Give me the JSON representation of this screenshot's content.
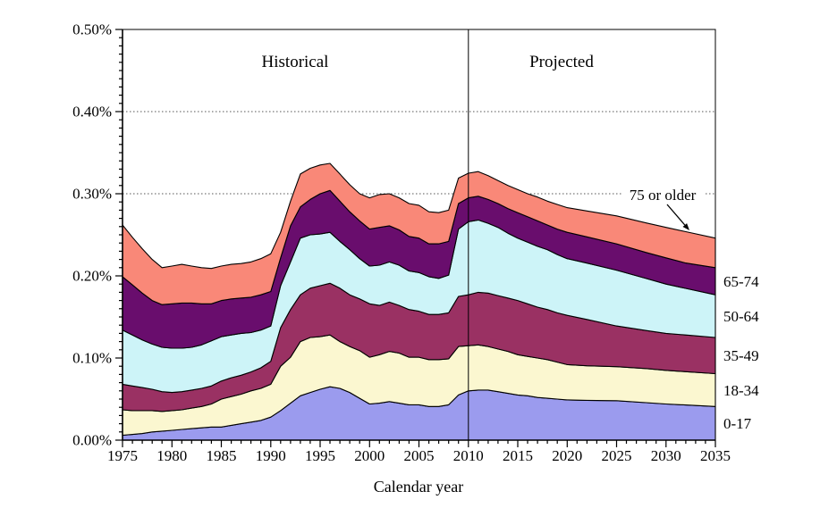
{
  "chart_data": {
    "type": "area",
    "stacked": true,
    "xlabel": "Calendar year",
    "xlim": [
      1975,
      2035
    ],
    "ylim_percent": [
      0,
      0.5
    ],
    "grid": "dashed horizontal at each 0.10%",
    "legend_position": "right-edge band labels",
    "divider_year": 2010,
    "y_tick_labels": [
      "0.00%",
      "0.10%",
      "0.20%",
      "0.30%",
      "0.40%",
      "0.50%"
    ],
    "x_tick_labels": [
      "1975",
      "1980",
      "1985",
      "1990",
      "1995",
      "2000",
      "2005",
      "2010",
      "2015",
      "2020",
      "2025",
      "2030",
      "2035"
    ],
    "annotations": {
      "historical": "Historical",
      "projected": "Projected",
      "callout": "75 or older"
    },
    "x": [
      1975,
      1976,
      1977,
      1978,
      1979,
      1980,
      1981,
      1982,
      1983,
      1984,
      1985,
      1986,
      1987,
      1988,
      1989,
      1990,
      1991,
      1992,
      1993,
      1994,
      1995,
      1996,
      1997,
      1998,
      1999,
      2000,
      2001,
      2002,
      2003,
      2004,
      2005,
      2006,
      2007,
      2008,
      2009,
      2010,
      2011,
      2012,
      2013,
      2014,
      2015,
      2016,
      2017,
      2018,
      2019,
      2020,
      2022,
      2025,
      2028,
      2030,
      2032,
      2035
    ],
    "series": [
      {
        "name": "0-17",
        "color": "#9B9BEE",
        "values": [
          0.006,
          0.007,
          0.008,
          0.01,
          0.011,
          0.012,
          0.013,
          0.014,
          0.015,
          0.016,
          0.016,
          0.018,
          0.02,
          0.022,
          0.024,
          0.028,
          0.036,
          0.045,
          0.054,
          0.058,
          0.062,
          0.065,
          0.063,
          0.058,
          0.051,
          0.044,
          0.045,
          0.047,
          0.045,
          0.043,
          0.043,
          0.041,
          0.041,
          0.043,
          0.055,
          0.06,
          0.061,
          0.061,
          0.059,
          0.057,
          0.055,
          0.054,
          0.052,
          0.051,
          0.05,
          0.049,
          0.0485,
          0.048,
          0.0456,
          0.044,
          0.0428,
          0.041
        ]
      },
      {
        "name": "18-34",
        "color": "#FBF7D0",
        "values": [
          0.031,
          0.029,
          0.028,
          0.026,
          0.024,
          0.024,
          0.024,
          0.025,
          0.026,
          0.028,
          0.034,
          0.035,
          0.036,
          0.038,
          0.039,
          0.04,
          0.054,
          0.056,
          0.066,
          0.067,
          0.064,
          0.063,
          0.057,
          0.056,
          0.058,
          0.057,
          0.059,
          0.061,
          0.061,
          0.058,
          0.058,
          0.057,
          0.057,
          0.056,
          0.059,
          0.055,
          0.055,
          0.053,
          0.052,
          0.051,
          0.049,
          0.048,
          0.048,
          0.047,
          0.045,
          0.043,
          0.042,
          0.0415,
          0.0416,
          0.041,
          0.0406,
          0.04
        ]
      },
      {
        "name": "35-49",
        "color": "#9A3163",
        "values": [
          0.031,
          0.03,
          0.028,
          0.026,
          0.024,
          0.022,
          0.022,
          0.022,
          0.022,
          0.022,
          0.022,
          0.023,
          0.023,
          0.023,
          0.025,
          0.028,
          0.047,
          0.058,
          0.057,
          0.06,
          0.062,
          0.063,
          0.065,
          0.063,
          0.063,
          0.065,
          0.06,
          0.06,
          0.058,
          0.058,
          0.056,
          0.055,
          0.055,
          0.056,
          0.061,
          0.062,
          0.064,
          0.065,
          0.065,
          0.065,
          0.066,
          0.064,
          0.062,
          0.061,
          0.06,
          0.06,
          0.0565,
          0.0495,
          0.0463,
          0.045,
          0.0446,
          0.044
        ]
      },
      {
        "name": "50-64",
        "color": "#CDF4F8",
        "values": [
          0.066,
          0.062,
          0.058,
          0.055,
          0.054,
          0.054,
          0.053,
          0.052,
          0.053,
          0.055,
          0.054,
          0.052,
          0.051,
          0.048,
          0.046,
          0.043,
          0.051,
          0.058,
          0.069,
          0.065,
          0.063,
          0.062,
          0.057,
          0.055,
          0.049,
          0.046,
          0.049,
          0.049,
          0.049,
          0.047,
          0.047,
          0.046,
          0.044,
          0.046,
          0.082,
          0.089,
          0.088,
          0.085,
          0.083,
          0.079,
          0.076,
          0.075,
          0.074,
          0.073,
          0.071,
          0.069,
          0.0685,
          0.068,
          0.0633,
          0.06,
          0.0568,
          0.052
        ]
      },
      {
        "name": "65-74",
        "color": "#690D6D",
        "values": [
          0.065,
          0.061,
          0.057,
          0.053,
          0.052,
          0.054,
          0.055,
          0.054,
          0.05,
          0.045,
          0.044,
          0.044,
          0.043,
          0.043,
          0.043,
          0.042,
          0.034,
          0.044,
          0.038,
          0.043,
          0.049,
          0.051,
          0.049,
          0.046,
          0.046,
          0.045,
          0.046,
          0.044,
          0.043,
          0.042,
          0.042,
          0.04,
          0.042,
          0.041,
          0.031,
          0.029,
          0.029,
          0.029,
          0.029,
          0.03,
          0.031,
          0.031,
          0.031,
          0.03,
          0.031,
          0.032,
          0.032,
          0.032,
          0.0317,
          0.032,
          0.0308,
          0.033
        ]
      },
      {
        "name": "75 or older",
        "color": "#F98878",
        "values": [
          0.063,
          0.058,
          0.054,
          0.05,
          0.045,
          0.046,
          0.047,
          0.045,
          0.044,
          0.043,
          0.042,
          0.042,
          0.042,
          0.043,
          0.044,
          0.046,
          0.031,
          0.03,
          0.04,
          0.038,
          0.035,
          0.033,
          0.033,
          0.033,
          0.033,
          0.038,
          0.04,
          0.039,
          0.039,
          0.04,
          0.04,
          0.039,
          0.038,
          0.038,
          0.031,
          0.03,
          0.03,
          0.029,
          0.028,
          0.028,
          0.028,
          0.028,
          0.029,
          0.029,
          0.03,
          0.03,
          0.0315,
          0.034,
          0.036,
          0.037,
          0.0382,
          0.036
        ]
      }
    ]
  }
}
